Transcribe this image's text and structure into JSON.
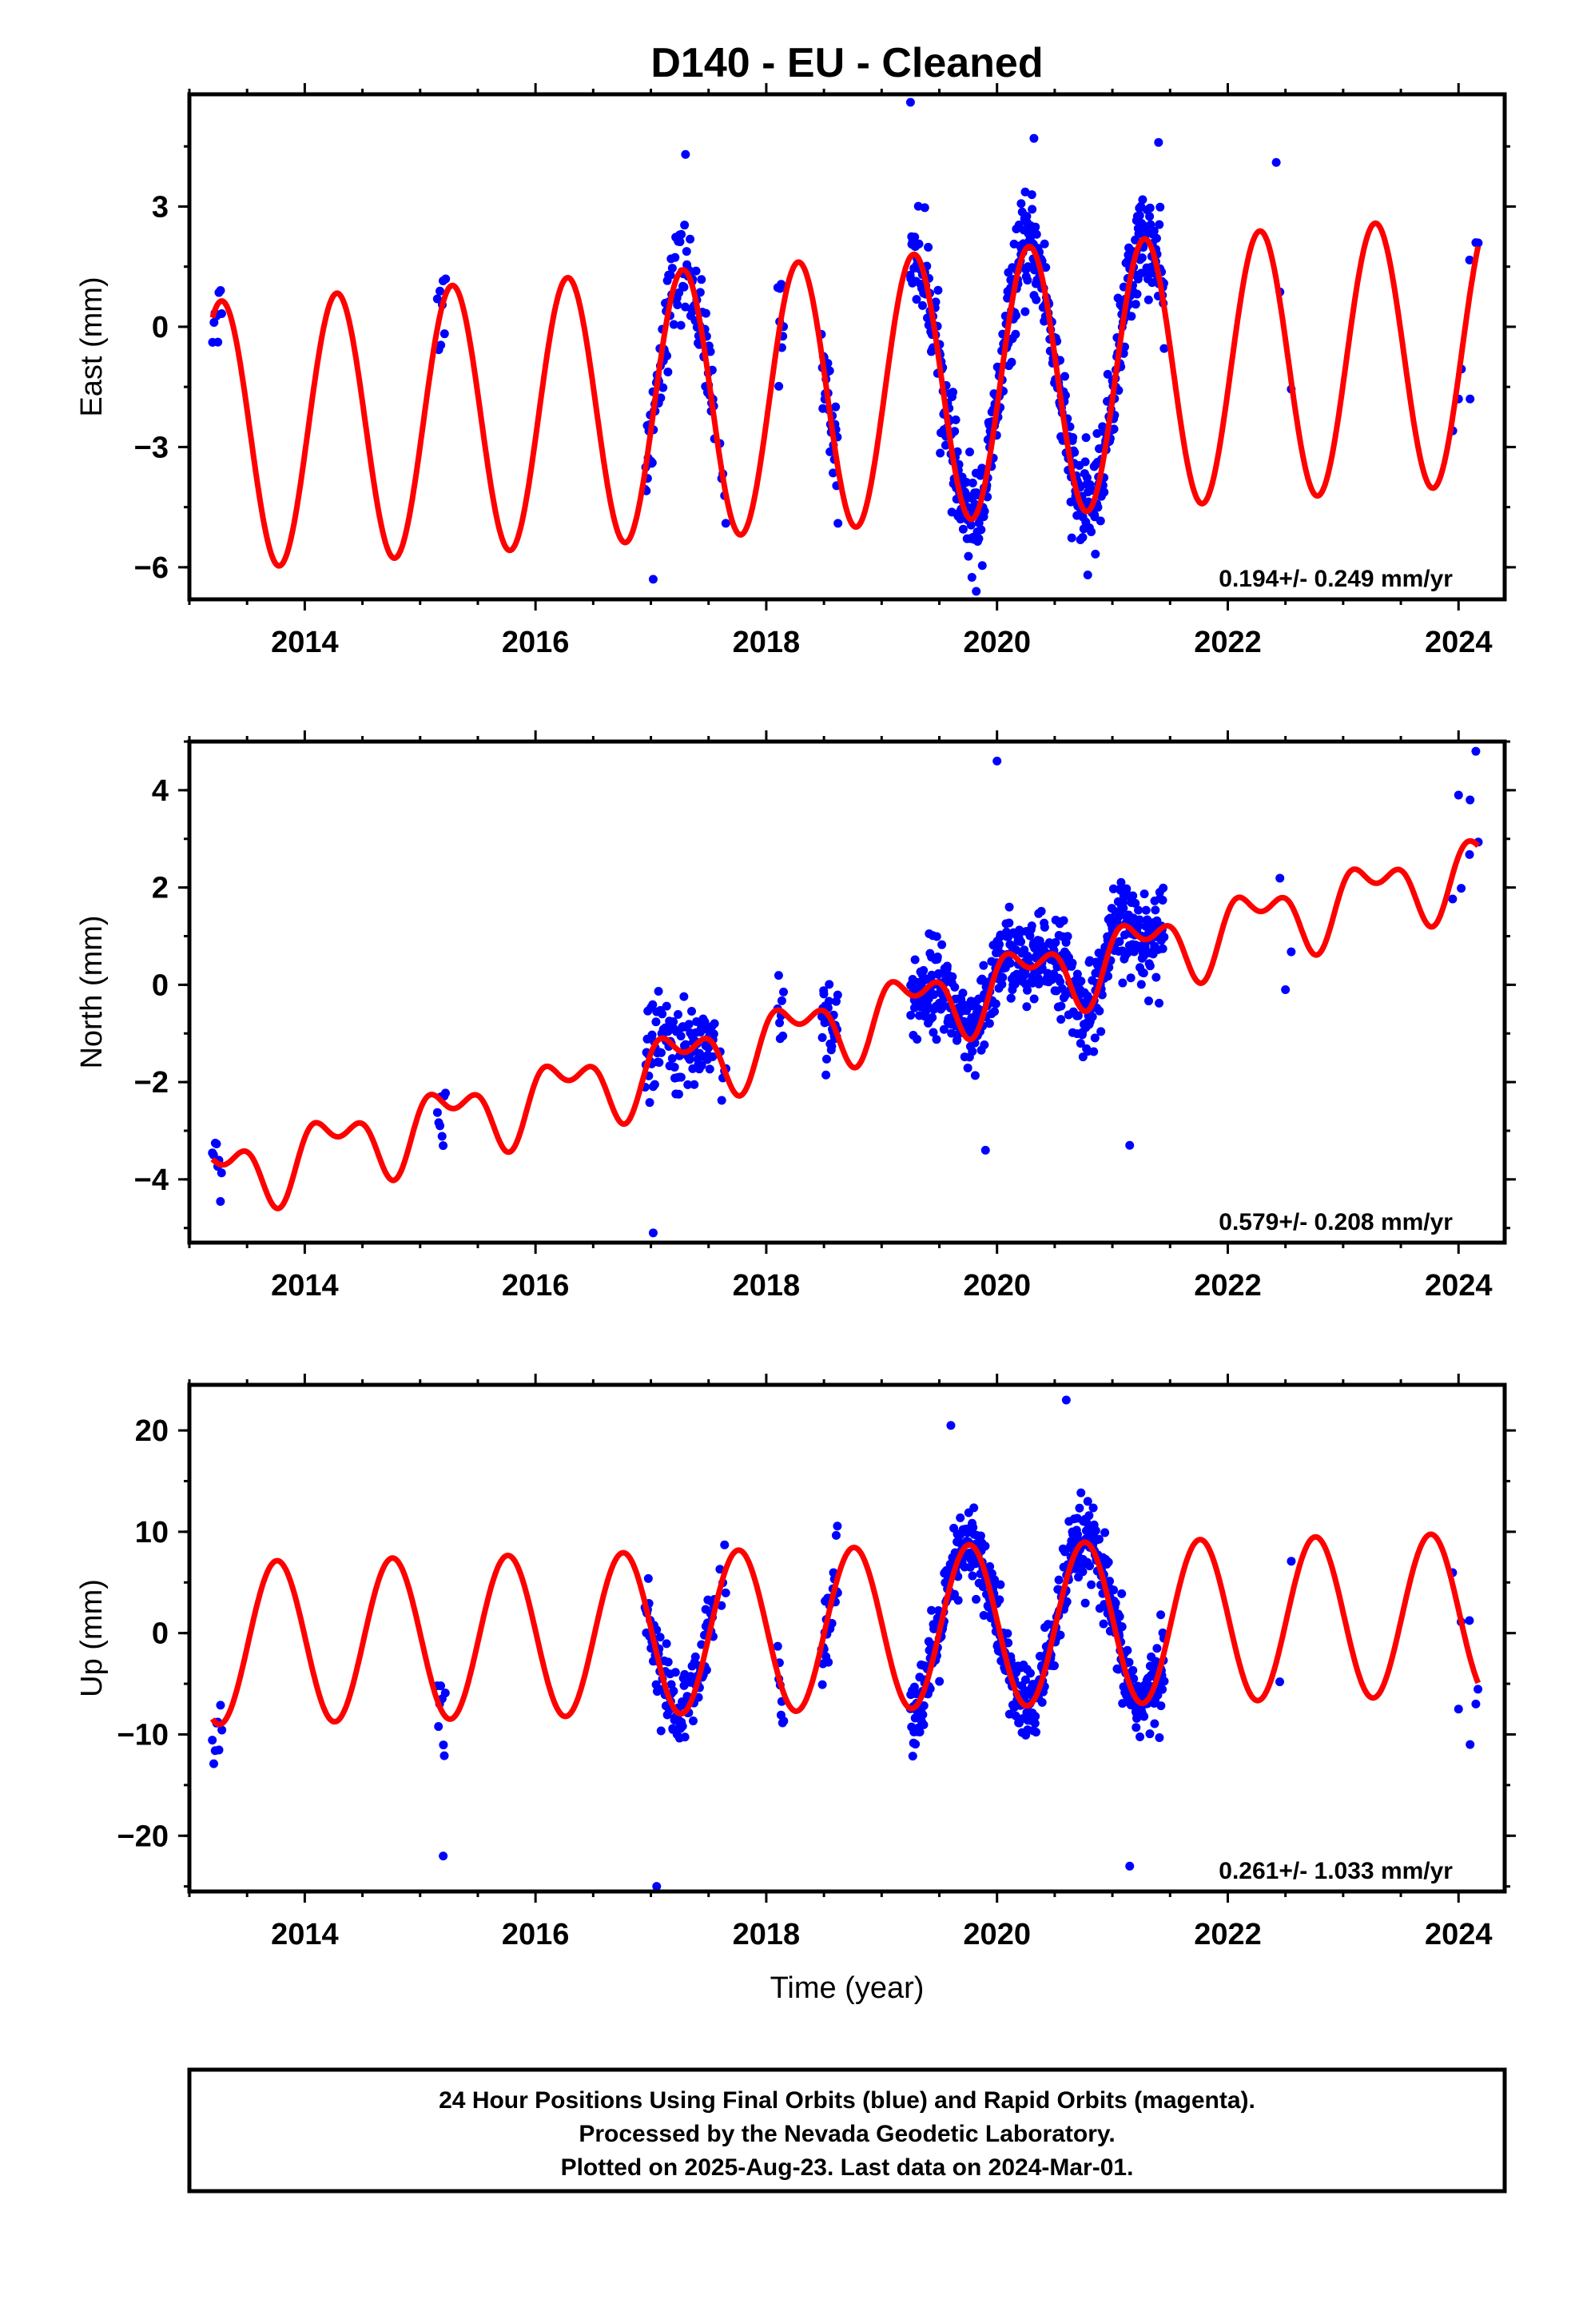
{
  "title": "D140  - EU - Cleaned",
  "colors": {
    "data_points": "#0000ff",
    "model_fit": "#ff0000",
    "frame": "#000000"
  },
  "x_axis_label": "Time (year)",
  "footer": {
    "lines": [
      "24 Hour Positions Using Final Orbits (blue) and Rapid Orbits (magenta).",
      "Processed by the Nevada Geodetic Laboratory.",
      "Plotted on 2025-Aug-23. Last data on 2024-Mar-01."
    ]
  },
  "chart_data": [
    {
      "type": "scatter",
      "ylabel": "East (mm)",
      "rate_text": "0.194+/- 0.249 mm/yr",
      "xlim": [
        2013.0,
        2024.4
      ],
      "ylim": [
        -6.8,
        5.8
      ],
      "x_ticks": [
        2014,
        2016,
        2018,
        2020,
        2022,
        2024
      ],
      "y_ticks": [
        -6,
        -3,
        0,
        3
      ],
      "y_tick_labels": [
        "−6",
        "−3",
        "0",
        "3"
      ],
      "model": {
        "offset": -1.6,
        "rate": 0.194,
        "amp_sin": 3.3,
        "amp_cos": -0.6,
        "amp_sin2": 0.0,
        "amp_cos2": 0.0,
        "x0": 2019.0
      },
      "observation_periods": [
        {
          "start": 2013.2,
          "end": 2013.28,
          "count": 8
        },
        {
          "start": 2015.15,
          "end": 2015.22,
          "count": 8
        },
        {
          "start": 2016.95,
          "end": 2017.55,
          "count": 110
        },
        {
          "start": 2017.6,
          "end": 2017.65,
          "count": 5
        },
        {
          "start": 2018.1,
          "end": 2018.15,
          "count": 8
        },
        {
          "start": 2018.48,
          "end": 2018.62,
          "count": 28
        },
        {
          "start": 2019.25,
          "end": 2021.45,
          "count": 560
        },
        {
          "start": 2022.45,
          "end": 2022.55,
          "count": 2
        },
        {
          "start": 2023.95,
          "end": 2024.17,
          "count": 4
        }
      ],
      "noise": 1.2,
      "outliers": [
        {
          "x": 2017.02,
          "y": -6.3
        },
        {
          "x": 2019.25,
          "y": 5.6
        },
        {
          "x": 2019.82,
          "y": -6.6
        },
        {
          "x": 2020.32,
          "y": 4.7
        },
        {
          "x": 2017.3,
          "y": 4.3
        },
        {
          "x": 2021.4,
          "y": 4.6
        },
        {
          "x": 2022.42,
          "y": 4.1
        },
        {
          "x": 2024.15,
          "y": 2.1
        },
        {
          "x": 2024.0,
          "y": -1.8
        },
        {
          "x": 2024.1,
          "y": -1.8
        }
      ]
    },
    {
      "type": "scatter",
      "ylabel": "North (mm)",
      "rate_text": "0.579+/- 0.208 mm/yr",
      "xlim": [
        2013.0,
        2024.4
      ],
      "ylim": [
        -5.3,
        5.0
      ],
      "x_ticks": [
        2014,
        2016,
        2018,
        2020,
        2022,
        2024
      ],
      "y_ticks": [
        -4,
        -2,
        0,
        2,
        4
      ],
      "y_tick_labels": [
        "−4",
        "−2",
        "0",
        "2",
        "4"
      ],
      "model": {
        "offset": -0.6,
        "rate": 0.579,
        "amp_sin": 0.6,
        "amp_cos": 0.0,
        "amp_sin2": 0.15,
        "amp_cos2": 0.35,
        "x0": 2019.0
      },
      "observation_periods": [
        {
          "start": 2013.2,
          "end": 2013.28,
          "count": 8
        },
        {
          "start": 2015.15,
          "end": 2015.22,
          "count": 8
        },
        {
          "start": 2016.95,
          "end": 2017.55,
          "count": 110
        },
        {
          "start": 2017.6,
          "end": 2017.65,
          "count": 5
        },
        {
          "start": 2018.1,
          "end": 2018.15,
          "count": 8
        },
        {
          "start": 2018.48,
          "end": 2018.62,
          "count": 28
        },
        {
          "start": 2019.25,
          "end": 2021.45,
          "count": 560
        },
        {
          "start": 2022.45,
          "end": 2022.55,
          "count": 2
        },
        {
          "start": 2023.95,
          "end": 2024.17,
          "count": 4
        }
      ],
      "noise": 0.9,
      "outliers": [
        {
          "x": 2017.02,
          "y": -5.1
        },
        {
          "x": 2020.0,
          "y": 4.6
        },
        {
          "x": 2024.0,
          "y": 3.9
        },
        {
          "x": 2024.1,
          "y": 3.8
        },
        {
          "x": 2024.15,
          "y": 4.8
        },
        {
          "x": 2022.5,
          "y": -0.1
        },
        {
          "x": 2021.15,
          "y": -3.3
        },
        {
          "x": 2019.9,
          "y": -3.4
        }
      ]
    },
    {
      "type": "scatter",
      "ylabel": "Up (mm)",
      "rate_text": "0.261+/- 1.033 mm/yr",
      "xlim": [
        2013.0,
        2024.4
      ],
      "ylim": [
        -25.5,
        24.5
      ],
      "x_ticks": [
        2014,
        2016,
        2018,
        2020,
        2022,
        2024
      ],
      "y_ticks": [
        -20,
        -10,
        0,
        10,
        20
      ],
      "y_tick_labels": [
        "−20",
        "−10",
        "0",
        "10",
        "20"
      ],
      "model": {
        "offset": 0.5,
        "rate": 0.261,
        "amp_sin": -8.0,
        "amp_cos": 0.5,
        "amp_sin2": 0.0,
        "amp_cos2": 0.0,
        "x0": 2019.0
      },
      "observation_periods": [
        {
          "start": 2013.2,
          "end": 2013.28,
          "count": 8
        },
        {
          "start": 2015.15,
          "end": 2015.22,
          "count": 8
        },
        {
          "start": 2016.95,
          "end": 2017.55,
          "count": 110
        },
        {
          "start": 2017.6,
          "end": 2017.65,
          "count": 5
        },
        {
          "start": 2018.1,
          "end": 2018.15,
          "count": 8
        },
        {
          "start": 2018.48,
          "end": 2018.62,
          "count": 28
        },
        {
          "start": 2019.25,
          "end": 2021.45,
          "count": 560
        },
        {
          "start": 2022.45,
          "end": 2022.55,
          "count": 2
        },
        {
          "start": 2023.95,
          "end": 2024.17,
          "count": 4
        }
      ],
      "noise": 4.0,
      "outliers": [
        {
          "x": 2017.05,
          "y": -25.0
        },
        {
          "x": 2020.6,
          "y": 23.0
        },
        {
          "x": 2019.6,
          "y": 20.5
        },
        {
          "x": 2015.2,
          "y": -22.0
        },
        {
          "x": 2021.15,
          "y": -23.0
        },
        {
          "x": 2024.0,
          "y": -7.5
        },
        {
          "x": 2024.1,
          "y": -11.0
        },
        {
          "x": 2024.15,
          "y": -7.0
        }
      ]
    }
  ]
}
